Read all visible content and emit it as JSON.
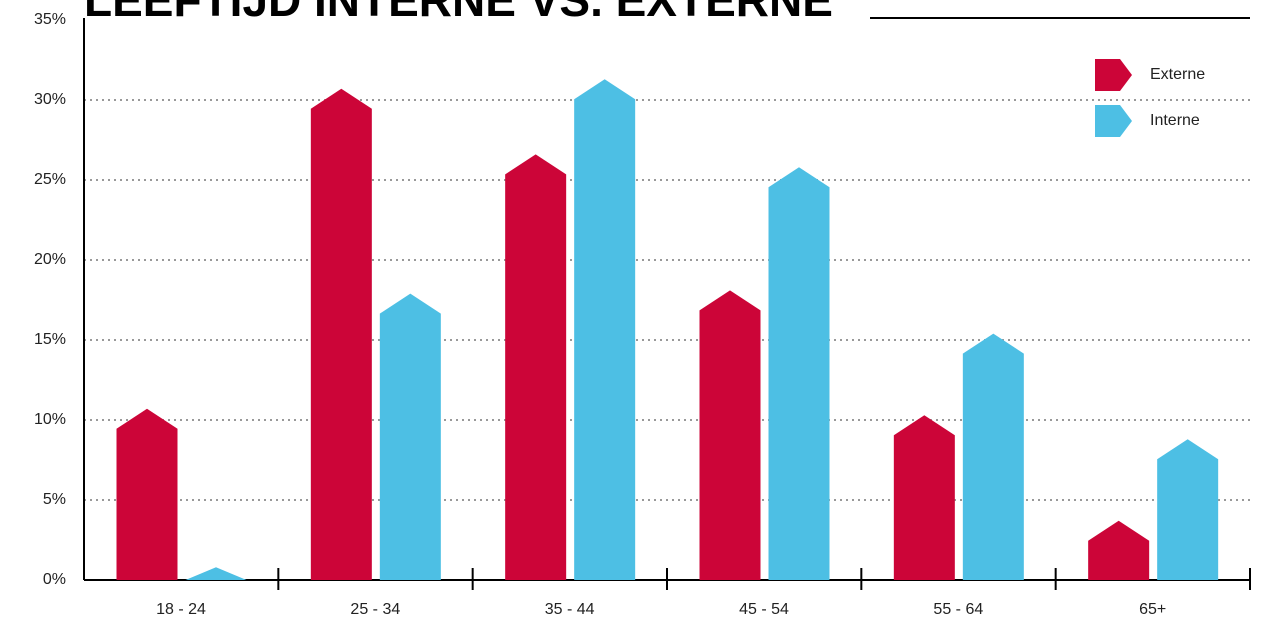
{
  "chart_data": {
    "type": "bar",
    "title": "LEEFTIJD INTERNE VS. EXTERNE",
    "categories": [
      "18 - 24",
      "25 - 34",
      "35 - 44",
      "45 - 54",
      "55 - 64",
      "65+"
    ],
    "series": [
      {
        "name": "Externe",
        "color": "#cc0538",
        "values": [
          10.7,
          30.7,
          26.6,
          18.1,
          10.3,
          3.7
        ]
      },
      {
        "name": "Interne",
        "color": "#4dbfe4",
        "values": [
          0.8,
          17.9,
          31.3,
          25.8,
          15.4,
          8.8
        ]
      }
    ],
    "ylim": [
      0,
      35
    ],
    "yticks": [
      {
        "value": 0,
        "label": "0%"
      },
      {
        "value": 5,
        "label": "5%"
      },
      {
        "value": 10,
        "label": "10%"
      },
      {
        "value": 15,
        "label": "15%"
      },
      {
        "value": 20,
        "label": "20%"
      },
      {
        "value": 25,
        "label": "25%"
      },
      {
        "value": 30,
        "label": "30%"
      },
      {
        "value": 35,
        "label": "35%"
      }
    ],
    "grid": true,
    "legend": "top-right"
  }
}
